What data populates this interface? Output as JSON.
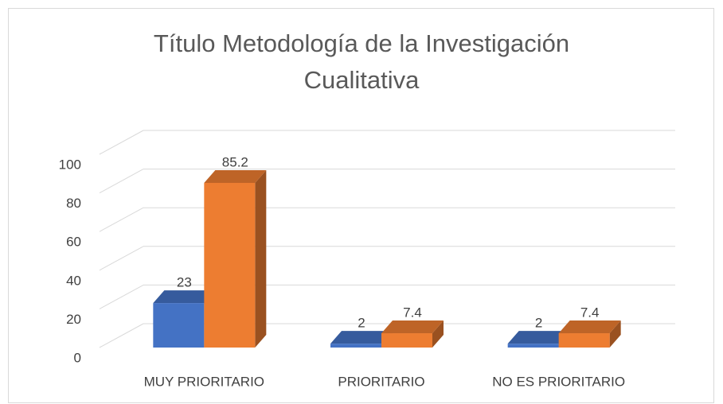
{
  "chart_data": {
    "type": "bar3d",
    "title": "Título Metodología de la Investigación Cualitativa",
    "categories": [
      "MUY PRIORITARIO",
      "PRIORITARIO",
      "NO ES PRIORITARIO"
    ],
    "series": [
      {
        "color": "#4472c4",
        "values": [
          23,
          2,
          2
        ]
      },
      {
        "color": "#ed7d31",
        "values": [
          85.2,
          7.4,
          7.4
        ]
      }
    ],
    "ylim": [
      0,
      100
    ],
    "yticks": [
      0,
      20,
      40,
      60,
      80,
      100
    ],
    "grid": true
  }
}
